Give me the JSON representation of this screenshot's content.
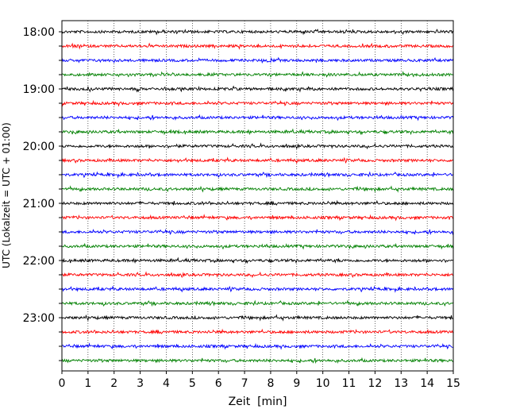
{
  "chart_data": {
    "type": "line",
    "subtype": "helicorder",
    "xlabel": "Zeit  [min]",
    "ylabel": "UTC (Lokalzeit = UTC + 01:00)",
    "xlim": [
      0,
      15
    ],
    "x_ticks": [
      "0",
      "1",
      "2",
      "3",
      "4",
      "5",
      "6",
      "7",
      "8",
      "9",
      "10",
      "11",
      "12",
      "13",
      "14",
      "15"
    ],
    "y_tick_labels": [
      "18:00",
      "19:00",
      "20:00",
      "21:00",
      "22:00",
      "23:00"
    ],
    "grid": "vertical dotted",
    "minutes_per_trace": 15,
    "trace_colors": [
      "#000000",
      "#ff0000",
      "#0000ff",
      "#008000"
    ],
    "traces": [
      {
        "start": "18:00",
        "color": "#000000"
      },
      {
        "start": "18:15",
        "color": "#ff0000"
      },
      {
        "start": "18:30",
        "color": "#0000ff"
      },
      {
        "start": "18:45",
        "color": "#008000"
      },
      {
        "start": "19:00",
        "color": "#000000"
      },
      {
        "start": "19:15",
        "color": "#ff0000"
      },
      {
        "start": "19:30",
        "color": "#0000ff"
      },
      {
        "start": "19:45",
        "color": "#008000"
      },
      {
        "start": "20:00",
        "color": "#000000"
      },
      {
        "start": "20:15",
        "color": "#ff0000"
      },
      {
        "start": "20:30",
        "color": "#0000ff"
      },
      {
        "start": "20:45",
        "color": "#008000"
      },
      {
        "start": "21:00",
        "color": "#000000"
      },
      {
        "start": "21:15",
        "color": "#ff0000"
      },
      {
        "start": "21:30",
        "color": "#0000ff"
      },
      {
        "start": "21:45",
        "color": "#008000"
      },
      {
        "start": "22:00",
        "color": "#000000"
      },
      {
        "start": "22:15",
        "color": "#ff0000"
      },
      {
        "start": "22:30",
        "color": "#0000ff"
      },
      {
        "start": "22:45",
        "color": "#008000"
      },
      {
        "start": "23:00",
        "color": "#000000"
      },
      {
        "start": "23:15",
        "color": "#ff0000"
      },
      {
        "start": "23:30",
        "color": "#0000ff"
      },
      {
        "start": "23:45",
        "color": "#008000"
      }
    ]
  }
}
